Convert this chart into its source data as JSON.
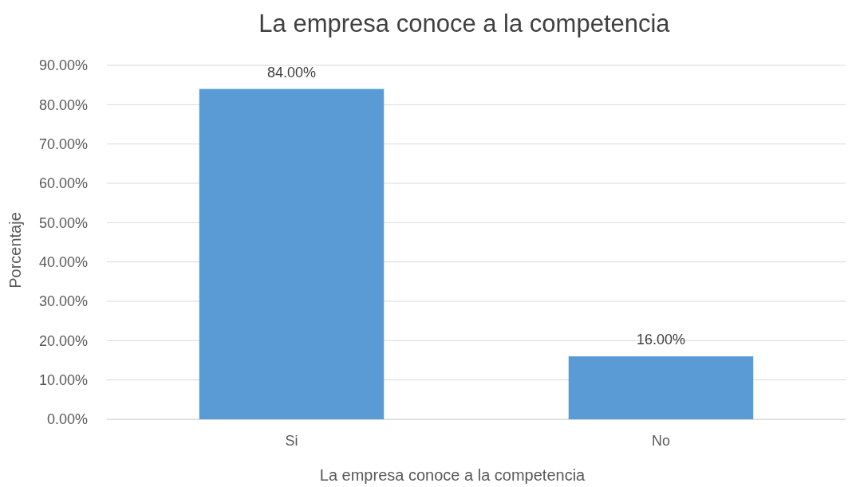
{
  "chart_data": {
    "type": "bar",
    "title": "La empresa conoce a la competencia",
    "xlabel": "La empresa conoce a la competencia",
    "ylabel": "Porcentaje",
    "categories": [
      "Si",
      "No"
    ],
    "values": [
      84,
      16
    ],
    "value_labels": [
      "84.00%",
      "16.00%"
    ],
    "color": "#5b9bd5",
    "ylim": [
      0,
      90
    ],
    "yticks": [
      {
        "value": 0,
        "label": "0.00%"
      },
      {
        "value": 10,
        "label": "10.00%"
      },
      {
        "value": 20,
        "label": "20.00%"
      },
      {
        "value": 30,
        "label": "30.00%"
      },
      {
        "value": 40,
        "label": "40.00%"
      },
      {
        "value": 50,
        "label": "50.00%"
      },
      {
        "value": 60,
        "label": "60.00%"
      },
      {
        "value": 70,
        "label": "70.00%"
      },
      {
        "value": 80,
        "label": "80.00%"
      },
      {
        "value": 90,
        "label": "90.00%"
      }
    ],
    "grid": "y"
  }
}
